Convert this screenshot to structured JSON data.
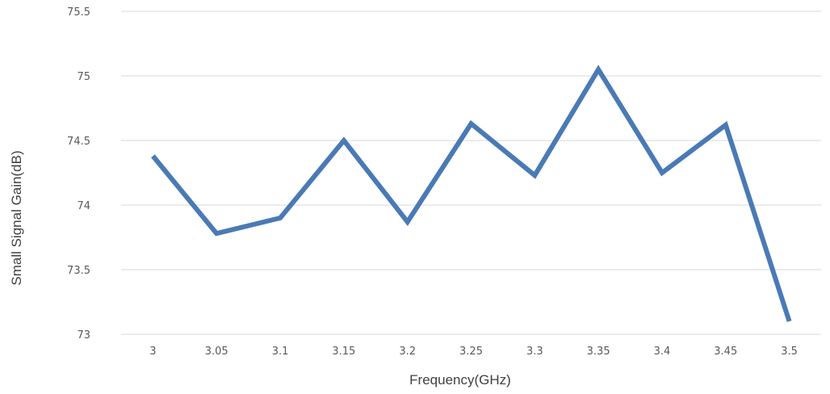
{
  "chart_data": {
    "type": "line",
    "title": "",
    "xlabel": "Frequency(GHz)",
    "ylabel": "Small Signal Gain(dB)",
    "categories": [
      "3",
      "3.05",
      "3.1",
      "3.15",
      "3.2",
      "3.25",
      "3.3",
      "3.35",
      "3.4",
      "3.45",
      "3.5"
    ],
    "yticks": [
      "73",
      "73.5",
      "74",
      "74.5",
      "75",
      "75.5"
    ],
    "ylim": [
      73,
      75.5
    ],
    "grid": true,
    "legend": "none",
    "series": [
      {
        "values": [
          74.38,
          73.78,
          73.9,
          74.5,
          73.87,
          74.63,
          74.23,
          75.05,
          74.25,
          74.62,
          73.1
        ],
        "color": "#4a7ab5"
      }
    ]
  }
}
